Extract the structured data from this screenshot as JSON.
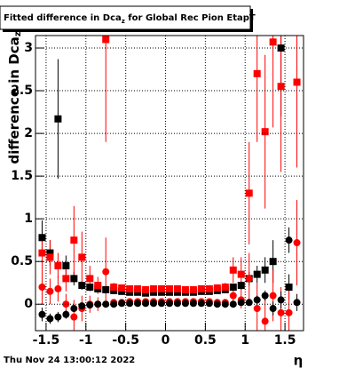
{
  "chart_data": {
    "type": "scatter",
    "title": "Fitted difference in Dca",
    "title_sub": "z",
    "title_rest": " for Global Rec Pion EtapT",
    "ylabel": "difference in Dca",
    "ylabel_sub": "z",
    "xlabel": "η",
    "footer": "Thu Nov 24 13:00:12 2022",
    "xlim": [
      -1.633,
      1.733
    ],
    "ylim": [
      -0.31,
      3.146
    ],
    "xticks": [
      -1.5,
      -1,
      -0.5,
      0,
      0.5,
      1,
      1.5
    ],
    "yticks": [
      0,
      0.5,
      1,
      1.5,
      2,
      2.5,
      3
    ],
    "grid": true,
    "x": [
      -1.55,
      -1.45,
      -1.35,
      -1.25,
      -1.15,
      -1.05,
      -0.95,
      -0.85,
      -0.75,
      -0.65,
      -0.55,
      -0.45,
      -0.35,
      -0.25,
      -0.15,
      -0.05,
      0.05,
      0.15,
      0.25,
      0.35,
      0.45,
      0.55,
      0.65,
      0.75,
      0.85,
      0.95,
      1.05,
      1.15,
      1.25,
      1.35,
      1.45,
      1.55,
      1.65
    ],
    "series": [
      {
        "color": "#000000",
        "marker": "square",
        "values": [
          0.78,
          0.6,
          2.17,
          0.45,
          0.3,
          0.22,
          0.2,
          0.18,
          0.17,
          0.16,
          0.15,
          0.14,
          0.14,
          0.13,
          0.14,
          0.14,
          0.14,
          0.14,
          0.14,
          0.14,
          0.15,
          0.15,
          0.16,
          0.17,
          0.2,
          0.22,
          0.3,
          0.35,
          0.4,
          0.5,
          3.0,
          0.2,
          null
        ],
        "errors": [
          0.2,
          0.15,
          0.7,
          0.12,
          0.08,
          0.05,
          0.04,
          0.03,
          0.03,
          0.02,
          0.02,
          0.02,
          0.02,
          0.02,
          0.02,
          0.02,
          0.02,
          0.02,
          0.02,
          0.02,
          0.02,
          0.02,
          0.03,
          0.03,
          0.04,
          0.05,
          0.08,
          0.1,
          0.15,
          0.25,
          0.8,
          0.15,
          null
        ]
      },
      {
        "color": "#ff0000",
        "marker": "square",
        "values": [
          0.6,
          0.55,
          0.45,
          0.3,
          0.75,
          0.55,
          0.3,
          0.22,
          3.1,
          0.2,
          0.19,
          0.18,
          0.18,
          0.17,
          0.18,
          0.18,
          0.18,
          0.18,
          0.17,
          0.17,
          0.18,
          0.18,
          0.19,
          0.2,
          0.4,
          0.35,
          1.3,
          2.7,
          2.02,
          3.07,
          2.55,
          null,
          2.6
        ],
        "errors": [
          0.2,
          0.2,
          0.15,
          0.15,
          0.4,
          0.3,
          0.15,
          0.1,
          1.2,
          0.05,
          0.04,
          0.03,
          0.03,
          0.03,
          0.03,
          0.03,
          0.03,
          0.03,
          0.03,
          0.03,
          0.03,
          0.03,
          0.04,
          0.05,
          0.15,
          0.2,
          0.6,
          0.8,
          0.9,
          1.0,
          1.0,
          null,
          1.0
        ]
      },
      {
        "color": "#ff0000",
        "marker": "circle",
        "values": [
          0.2,
          0.15,
          0.18,
          0.0,
          -0.15,
          -0.05,
          0.0,
          0.0,
          0.38,
          0.02,
          0.02,
          0.03,
          0.03,
          0.03,
          0.03,
          0.03,
          0.03,
          0.03,
          0.03,
          0.03,
          0.03,
          0.03,
          0.02,
          0.02,
          0.1,
          0.05,
          0.3,
          -0.05,
          -0.2,
          0.1,
          -0.1,
          -0.1,
          0.72
        ],
        "errors": [
          0.2,
          0.15,
          0.15,
          0.12,
          0.2,
          0.15,
          0.1,
          0.08,
          0.4,
          0.03,
          0.03,
          0.03,
          0.03,
          0.03,
          0.03,
          0.03,
          0.03,
          0.03,
          0.03,
          0.03,
          0.03,
          0.03,
          0.03,
          0.04,
          0.1,
          0.1,
          0.3,
          0.3,
          0.3,
          0.3,
          0.3,
          0.3,
          0.5
        ]
      },
      {
        "color": "#000000",
        "marker": "circle",
        "values": [
          -0.12,
          -0.17,
          -0.15,
          -0.12,
          -0.05,
          -0.02,
          -0.01,
          0.0,
          0.0,
          0.0,
          0.01,
          0.01,
          0.01,
          0.01,
          0.01,
          0.01,
          0.01,
          0.01,
          0.01,
          0.01,
          0.01,
          0.01,
          0.0,
          0.0,
          0.0,
          0.02,
          0.02,
          0.05,
          0.1,
          -0.05,
          0.05,
          0.75,
          0.02
        ],
        "errors": [
          0.08,
          0.06,
          0.06,
          0.05,
          0.04,
          0.03,
          0.02,
          0.02,
          0.02,
          0.01,
          0.01,
          0.01,
          0.01,
          0.01,
          0.01,
          0.01,
          0.01,
          0.01,
          0.01,
          0.01,
          0.01,
          0.01,
          0.02,
          0.02,
          0.02,
          0.03,
          0.04,
          0.05,
          0.06,
          0.08,
          0.1,
          0.15,
          0.1
        ]
      }
    ]
  }
}
